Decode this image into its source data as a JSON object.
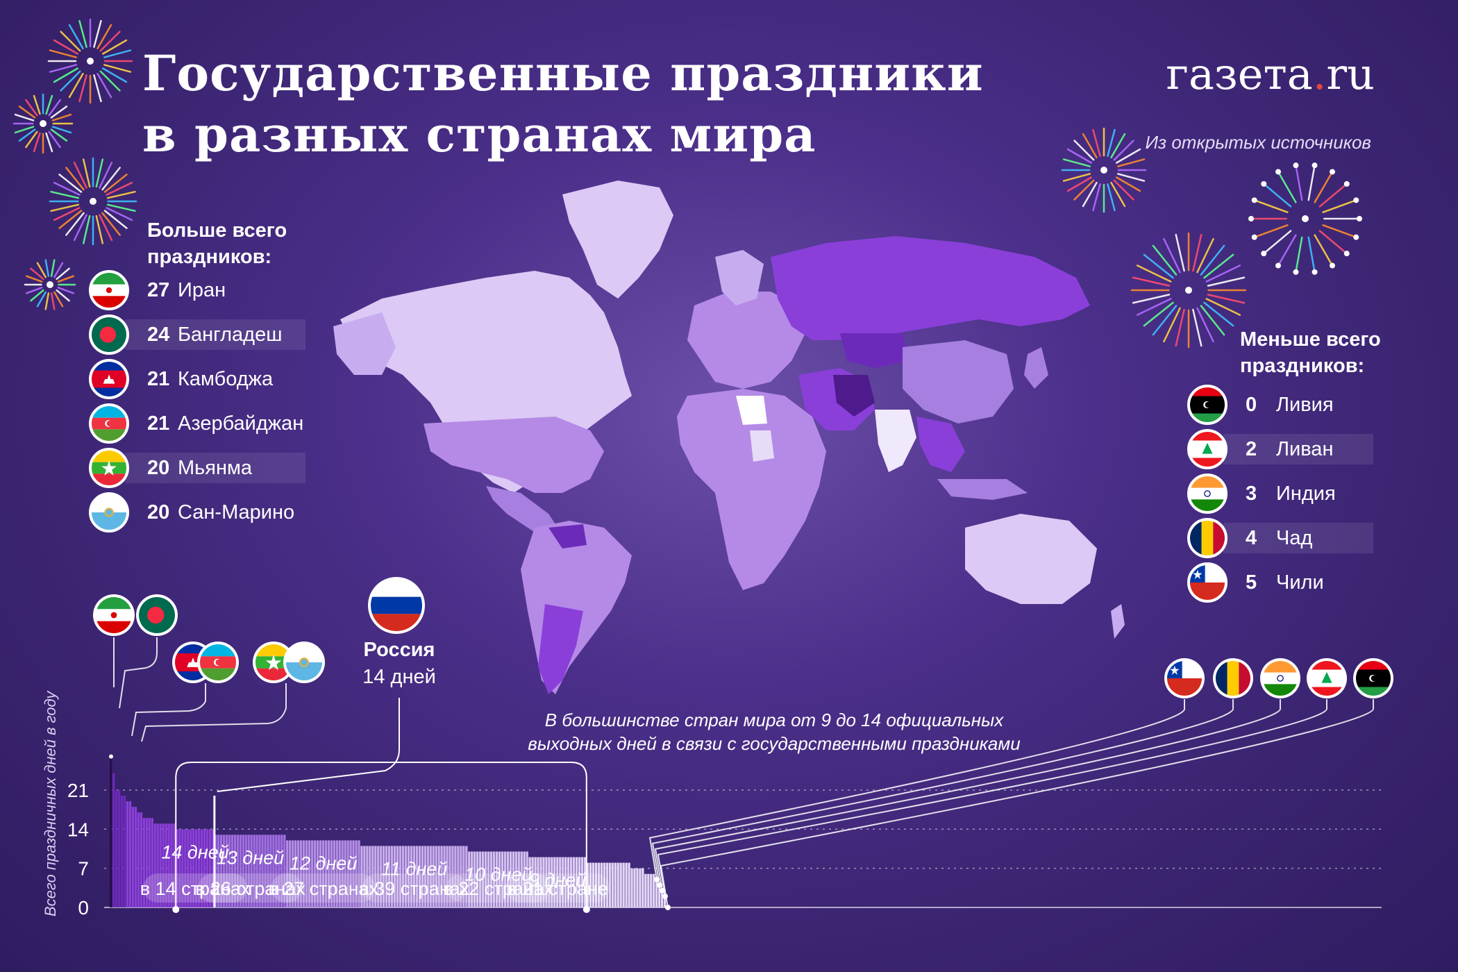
{
  "header": {
    "title_line1": "Государственные праздники",
    "title_line2": "в разных странах мира",
    "logo_main": "газета",
    "logo_dot": ".",
    "logo_tld": "ru",
    "source": "Из открытых источников"
  },
  "most": {
    "title_line1": "Больше всего",
    "title_line2": "праздников:",
    "items": [
      {
        "num": "27",
        "name": "Иран",
        "flag": "iran-flag-icon"
      },
      {
        "num": "24",
        "name": "Бангладеш",
        "flag": "bangladesh-flag-icon"
      },
      {
        "num": "21",
        "name": "Камбоджа",
        "flag": "cambodia-flag-icon"
      },
      {
        "num": "21",
        "name": "Азербайджан",
        "flag": "azerbaijan-flag-icon"
      },
      {
        "num": "20",
        "name": "Мьянма",
        "flag": "myanmar-flag-icon"
      },
      {
        "num": "20",
        "name": "Сан-Марино",
        "flag": "san-marino-flag-icon"
      }
    ]
  },
  "least": {
    "title_line1": "Меньше всего",
    "title_line2": "праздников:",
    "items": [
      {
        "num": "0",
        "name": "Ливия",
        "flag": "libya-flag-icon"
      },
      {
        "num": "2",
        "name": "Ливан",
        "flag": "lebanon-flag-icon"
      },
      {
        "num": "3",
        "name": "Индия",
        "flag": "india-flag-icon"
      },
      {
        "num": "4",
        "name": "Чад",
        "flag": "chad-flag-icon"
      },
      {
        "num": "5",
        "name": "Чили",
        "flag": "chile-flag-icon"
      }
    ]
  },
  "russia": {
    "name": "Россия",
    "days": "14 дней",
    "flag": "russia-flag-icon"
  },
  "note": {
    "line1": "В большинстве стран мира от 9 до 14 официальных",
    "line2": "выходных дней в связи с государственными праздниками"
  },
  "chart_data": {
    "type": "bar",
    "ylabel": "Всего праздничных дней в году",
    "yticks": [
      0,
      7,
      14,
      21
    ],
    "ylim": [
      0,
      27
    ],
    "top_values": [
      27,
      24,
      21,
      21,
      20,
      20,
      19,
      19,
      18,
      18,
      17,
      17,
      16,
      16,
      16,
      16,
      15,
      15,
      15,
      15,
      15,
      15,
      15,
      15
    ],
    "groups": [
      {
        "days": 14,
        "label": "14 дней",
        "count": 14,
        "count_label": "в 14 странах"
      },
      {
        "days": 13,
        "label": "13 дней",
        "count": 26,
        "count_label": "в 26 странах"
      },
      {
        "days": 12,
        "label": "12 дней",
        "count": 27,
        "count_label": "в 27 странах"
      },
      {
        "days": 11,
        "label": "11 дней",
        "count": 39,
        "count_label": "в 39 странах"
      },
      {
        "days": 10,
        "label": "10 дней",
        "count": 22,
        "count_label": "в 22 странах"
      },
      {
        "days": 9,
        "label": "9 дней",
        "count": 21,
        "count_label": "в 21 стране"
      }
    ],
    "tail_values": [
      8,
      8,
      8,
      8,
      8,
      8,
      8,
      8,
      8,
      8,
      8,
      8,
      8,
      8,
      8,
      8,
      7,
      7,
      7,
      7,
      7,
      6,
      6,
      6,
      6,
      5,
      4,
      3,
      2,
      0
    ]
  },
  "colors": {
    "background": "#3a2470",
    "map_light": "#dcc9f5",
    "map_mid": "#b58ae6",
    "map_dark": "#8a3fd9",
    "map_darkest": "#4e1a8c",
    "bar_dark": "#2a0d4e",
    "bar_purple": "#8b3fd9",
    "bar_light": "#d8c6f0"
  }
}
